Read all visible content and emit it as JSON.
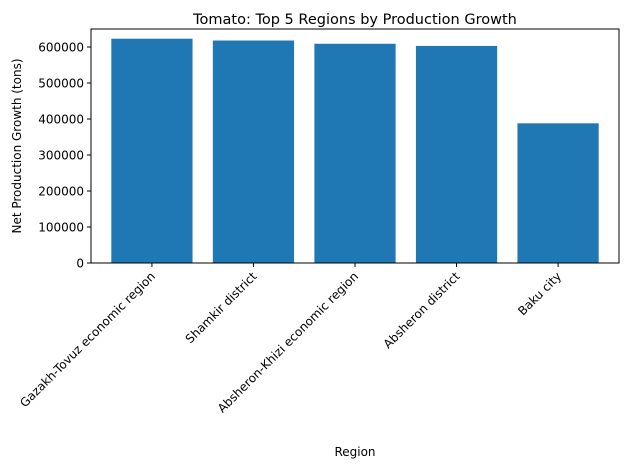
{
  "chart_data": {
    "type": "bar",
    "title": "Tomato: Top 5 Regions by Production Growth",
    "xlabel": "Region",
    "ylabel": "Net Production Growth (tons)",
    "categories": [
      "Gazakh-Tovuz economic region",
      "Shamkir district",
      "Absheron-Khizi economic region",
      "Absheron district",
      "Baku city"
    ],
    "values": [
      623000,
      618000,
      609000,
      603000,
      388000
    ],
    "ylim": [
      0,
      650000
    ],
    "yticks": [
      0,
      100000,
      200000,
      300000,
      400000,
      500000,
      600000
    ],
    "ytick_labels": [
      "0",
      "100000",
      "200000",
      "300000",
      "400000",
      "500000",
      "600000"
    ],
    "grid": false,
    "bar_color": "#1f77b4"
  }
}
